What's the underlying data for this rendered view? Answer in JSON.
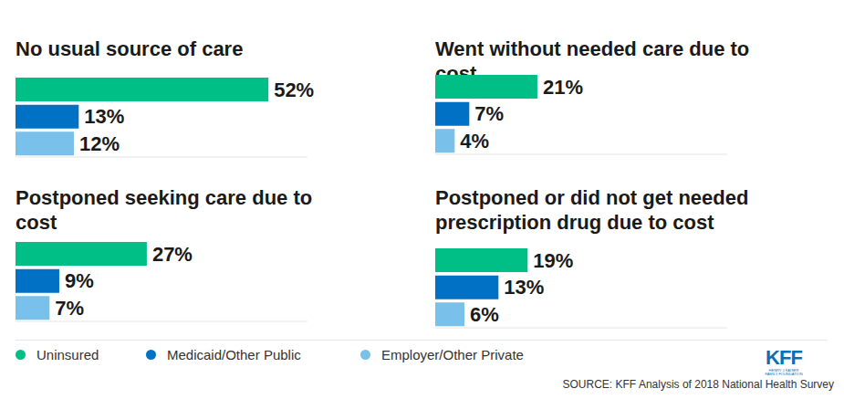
{
  "chart_data": [
    {
      "type": "bar",
      "title": "No usual source of care",
      "orientation": "horizontal",
      "categories": [
        "Uninsured",
        "Medicaid/Other Public",
        "Employer/Other Private"
      ],
      "values": [
        52,
        13,
        12
      ],
      "value_labels": [
        "52%",
        "13%",
        "12%"
      ],
      "colors": [
        "#00bf86",
        "#0071c5",
        "#79c0ea"
      ],
      "xlim": [
        0,
        60
      ],
      "data_labels": true,
      "tick_labels": false,
      "legend": "bottom"
    },
    {
      "type": "bar",
      "title": "Went without needed care due to cost",
      "orientation": "horizontal",
      "categories": [
        "Uninsured",
        "Medicaid/Other Public",
        "Employer/Other Private"
      ],
      "values": [
        21,
        7,
        4
      ],
      "value_labels": [
        "21%",
        "7%",
        "4%"
      ],
      "colors": [
        "#00bf86",
        "#0071c5",
        "#79c0ea"
      ],
      "xlim": [
        0,
        60
      ],
      "data_labels": true,
      "tick_labels": false
    },
    {
      "type": "bar",
      "title": "Postponed seeking care due to cost",
      "orientation": "horizontal",
      "categories": [
        "Uninsured",
        "Medicaid/Other Public",
        "Employer/Other Private"
      ],
      "values": [
        27,
        9,
        7
      ],
      "value_labels": [
        "27%",
        "9%",
        "7%"
      ],
      "colors": [
        "#00bf86",
        "#0071c5",
        "#79c0ea"
      ],
      "xlim": [
        0,
        60
      ],
      "data_labels": true,
      "tick_labels": false
    },
    {
      "type": "bar",
      "title": "Postponed or did not get needed prescription drug due to cost",
      "orientation": "horizontal",
      "categories": [
        "Uninsured",
        "Medicaid/Other Public",
        "Employer/Other Private"
      ],
      "values": [
        19,
        13,
        6
      ],
      "value_labels": [
        "19%",
        "13%",
        "6%"
      ],
      "colors": [
        "#00bf86",
        "#0071c5",
        "#79c0ea"
      ],
      "xlim": [
        0,
        60
      ],
      "data_labels": true,
      "tick_labels": false
    }
  ],
  "source": "SOURCE: KFF Analysis of 2018 National Health Survey",
  "logo": "KFF",
  "logo_subtitle": "HENRY J KAISER FAMILY FOUNDATION"
}
